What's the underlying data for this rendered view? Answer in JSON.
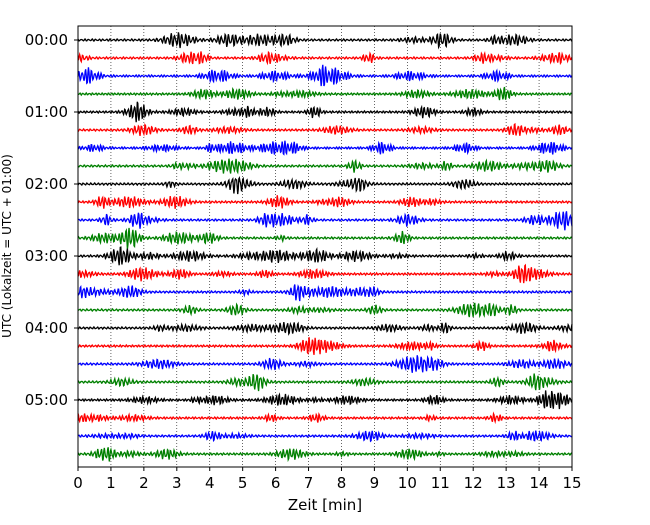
{
  "chart_data": {
    "type": "line",
    "title": "",
    "xlabel": "Zeit  [min]",
    "ylabel": "UTC (Lokalzeit = UTC + 01:00)",
    "xlim": [
      0,
      15
    ],
    "x_ticks": [
      0,
      1,
      2,
      3,
      4,
      5,
      6,
      7,
      8,
      9,
      10,
      11,
      12,
      13,
      14,
      15
    ],
    "y_tick_labels": [
      "00:00",
      "01:00",
      "02:00",
      "03:00",
      "04:00",
      "05:00"
    ],
    "grid": "vertical dotted lines at each minute",
    "trace_count": 24,
    "trace_interval_minutes": 15,
    "trace_colors": [
      "#000000",
      "#ff0000",
      "#0000ff",
      "#008000"
    ],
    "legend": "none"
  }
}
